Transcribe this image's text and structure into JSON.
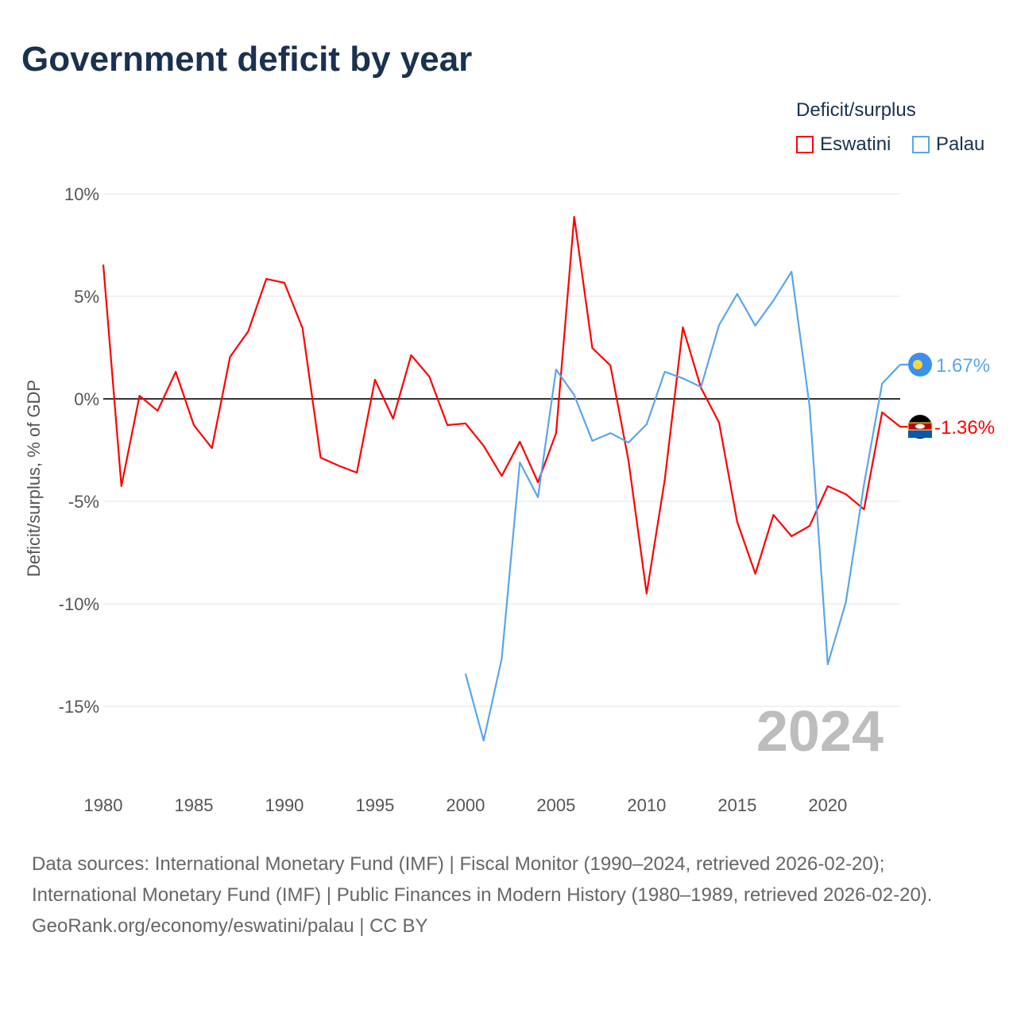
{
  "chart_data": {
    "type": "line",
    "title": "Government deficit by year",
    "ylabel": "Deficit/surplus, % of GDP",
    "xlabel": "",
    "xlim": [
      1980,
      2024
    ],
    "ylim": [
      -17.5,
      10
    ],
    "x_ticks": [
      1980,
      1985,
      1990,
      1995,
      2000,
      2005,
      2010,
      2015,
      2020
    ],
    "x_tick_labels": [
      "1980",
      "1985",
      "1990",
      "1995",
      "2000",
      "2005",
      "2010",
      "2015",
      "2020"
    ],
    "y_ticks": [
      10,
      5,
      0,
      -5,
      -10,
      -15
    ],
    "y_tick_labels": [
      "10%",
      "5%",
      "0%",
      "-5%",
      "-10%",
      "-15%"
    ],
    "legend_title": "Deficit/surplus",
    "legend_position": "top-right",
    "year_watermark": "2024",
    "series": [
      {
        "name": "Eswatini",
        "color": "#ff0000",
        "start_year": 1980,
        "end_label": "-1.36%",
        "values": [
          6.55,
          -4.26,
          0.15,
          -0.58,
          1.32,
          -1.28,
          -2.4,
          2.05,
          3.29,
          5.85,
          5.66,
          3.45,
          -2.87,
          -3.26,
          -3.6,
          0.93,
          -0.97,
          2.13,
          1.09,
          -1.28,
          -1.2,
          -2.29,
          -3.76,
          -2.09,
          -4.07,
          -1.67,
          8.88,
          2.48,
          1.63,
          -3.02,
          -9.5,
          -3.95,
          3.49,
          0.54,
          -1.16,
          -6.0,
          -8.53,
          -5.66,
          -6.7,
          -6.2,
          -4.26,
          -4.65,
          -5.39,
          -0.66,
          -1.36
        ]
      },
      {
        "name": "Palau",
        "color": "#5aa5ec",
        "start_year": 2000,
        "end_label": "1.67%",
        "values": [
          -13.41,
          -16.67,
          -12.67,
          -3.1,
          -4.8,
          1.43,
          0.19,
          -2.05,
          -1.67,
          -2.13,
          -1.24,
          1.32,
          1.0,
          0.58,
          3.6,
          5.12,
          3.57,
          4.8,
          6.2,
          -0.39,
          -12.95,
          -9.92,
          -4.19,
          0.74,
          1.67
        ]
      }
    ]
  },
  "footer": {
    "sources": "Data sources: International Monetary Fund (IMF) | Fiscal Monitor (1990–2024, retrieved 2026-02-20); International Monetary Fund (IMF) | Public Finances in Modern History (1980–1989, retrieved 2026-02-20).",
    "credit": "GeoRank.org/economy/eswatini/palau | CC BY"
  }
}
